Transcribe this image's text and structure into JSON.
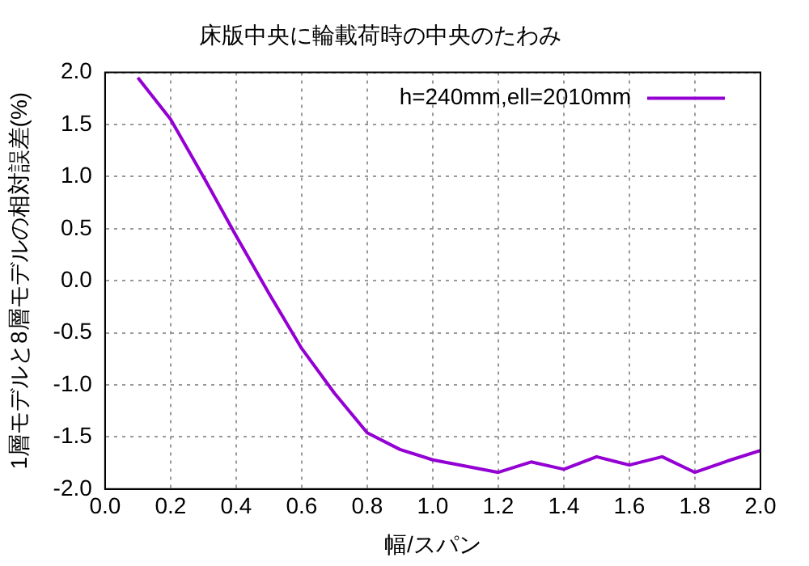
{
  "chart_data": {
    "type": "line",
    "title": "床版中央に輪載荷時の中央のたわみ",
    "xlabel": "幅/スパン",
    "ylabel": "1層モデルと8層モデルの相対誤差(%)",
    "x": [
      0.1,
      0.2,
      0.3,
      0.4,
      0.5,
      0.6,
      0.7,
      0.8,
      0.9,
      1.0,
      1.1,
      1.2,
      1.3,
      1.4,
      1.5,
      1.6,
      1.7,
      1.8,
      1.9,
      2.0
    ],
    "series": [
      {
        "name": "h=240mm,ell=2010mm",
        "color": "#9400d3",
        "values": [
          1.95,
          1.55,
          1.0,
          0.43,
          -0.12,
          -0.65,
          -1.08,
          -1.46,
          -1.62,
          -1.72,
          -1.78,
          -1.84,
          -1.74,
          -1.81,
          -1.69,
          -1.77,
          -1.69,
          -1.84,
          -1.73,
          -1.63
        ]
      }
    ],
    "xlim": [
      0,
      2
    ],
    "ylim": [
      -2,
      2
    ],
    "xticks": [
      {
        "value": 0,
        "label": "0.0"
      },
      {
        "value": 0.2,
        "label": "0.2"
      },
      {
        "value": 0.4,
        "label": "0.4"
      },
      {
        "value": 0.6,
        "label": "0.6"
      },
      {
        "value": 0.8,
        "label": "0.8"
      },
      {
        "value": 1,
        "label": "1.0"
      },
      {
        "value": 1.2,
        "label": "1.2"
      },
      {
        "value": 1.4,
        "label": "1.4"
      },
      {
        "value": 1.6,
        "label": "1.6"
      },
      {
        "value": 1.8,
        "label": "1.8"
      },
      {
        "value": 2,
        "label": "2.0"
      }
    ],
    "yticks": [
      {
        "value": -2,
        "label": "-2.0"
      },
      {
        "value": -1.5,
        "label": "-1.5"
      },
      {
        "value": -1,
        "label": "-1.0"
      },
      {
        "value": -0.5,
        "label": "-0.5"
      },
      {
        "value": 0,
        "label": "0.0"
      },
      {
        "value": 0.5,
        "label": "0.5"
      },
      {
        "value": 1,
        "label": "1.0"
      },
      {
        "value": 1.5,
        "label": "1.5"
      },
      {
        "value": 2,
        "label": "2.0"
      }
    ],
    "grid": true,
    "legend": "top right",
    "marker": "none",
    "line_style": "solid"
  }
}
